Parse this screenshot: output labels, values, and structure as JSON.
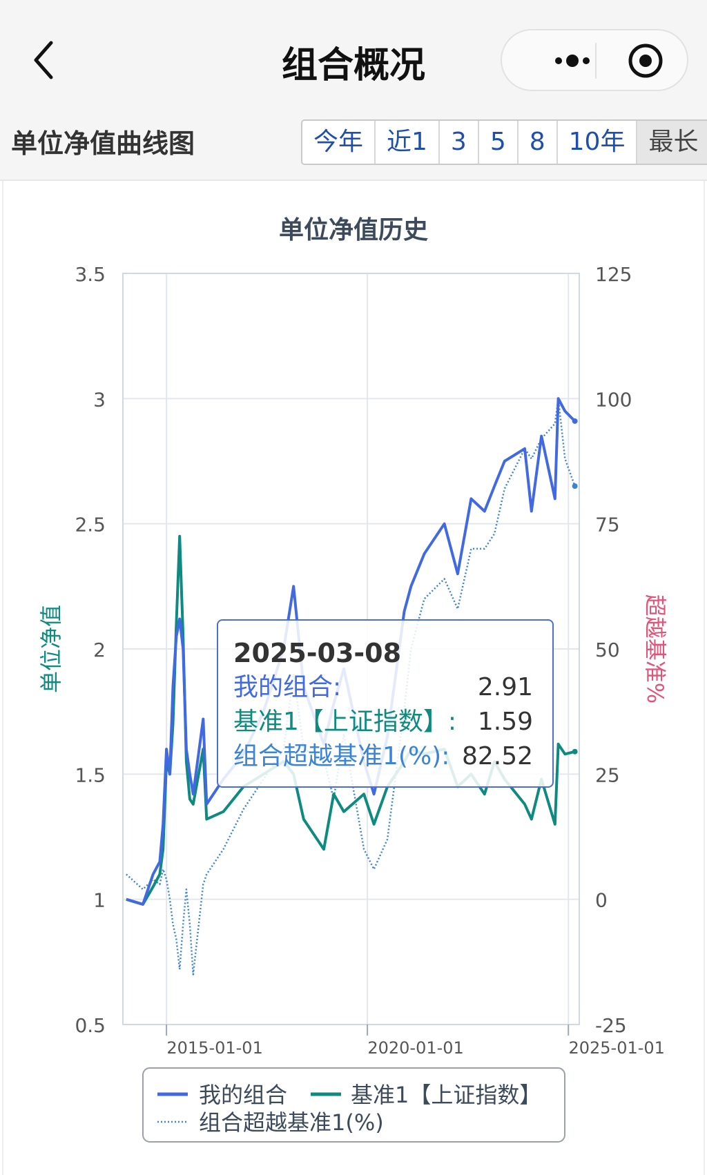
{
  "nav": {
    "title": "组合概况"
  },
  "section": {
    "title": "单位净值曲线图",
    "ranges": [
      "今年",
      "近1",
      "3",
      "5",
      "8",
      "10年",
      "最长"
    ],
    "active_range": "最长"
  },
  "chart_data": {
    "type": "line",
    "title": "单位净值历史",
    "ylabel": "单位净值",
    "y2label": "超越基准%",
    "ylim": [
      0.5,
      3.5
    ],
    "y_ticks": [
      "3.5",
      "3",
      "2.5",
      "2",
      "1.5",
      "1",
      "0.5"
    ],
    "y2lim": [
      -25,
      125
    ],
    "y2_ticks": [
      "125",
      "100",
      "75",
      "50",
      "25",
      "0",
      "-25"
    ],
    "x_ticks": [
      "2015-01-01",
      "2020-01-01",
      "2025-01-01"
    ],
    "xlim": [
      "2013-12-01",
      "2025-04-10"
    ],
    "grid": true,
    "legend_position": "bottom",
    "colors": {
      "portfolio": "#4169e1",
      "benchmark": "#0e8a80",
      "excess": "#3a83d6",
      "y2label": "#e05577"
    },
    "series": [
      {
        "name": "我的组合",
        "axis": "left",
        "x": [
          "2014-01",
          "2014-06",
          "2014-09",
          "2014-11",
          "2014-12",
          "2015-01",
          "2015-02",
          "2015-03",
          "2015-04",
          "2015-05",
          "2015-06",
          "2015-07",
          "2015-08",
          "2015-09",
          "2015-12",
          "2016-01",
          "2016-06",
          "2016-12",
          "2017-06",
          "2017-12",
          "2018-03",
          "2018-06",
          "2018-12",
          "2019-03",
          "2019-06",
          "2019-12",
          "2020-03",
          "2020-07",
          "2020-12",
          "2021-02",
          "2021-06",
          "2021-12",
          "2022-04",
          "2022-08",
          "2022-12",
          "2023-03",
          "2023-06",
          "2023-12",
          "2024-02",
          "2024-05",
          "2024-09",
          "2024-10",
          "2024-12",
          "2025-03"
        ],
        "values": [
          1.0,
          0.98,
          1.1,
          1.15,
          1.3,
          1.6,
          1.5,
          1.85,
          2.05,
          2.12,
          2.0,
          1.6,
          1.5,
          1.42,
          1.72,
          1.38,
          1.48,
          1.58,
          1.75,
          2.0,
          2.25,
          1.85,
          1.62,
          1.78,
          1.92,
          1.55,
          1.42,
          1.65,
          2.15,
          2.25,
          2.38,
          2.5,
          2.3,
          2.6,
          2.55,
          2.65,
          2.75,
          2.8,
          2.55,
          2.85,
          2.6,
          3.0,
          2.95,
          2.91
        ]
      },
      {
        "name": "基准1【上证指数】",
        "axis": "left",
        "x": [
          "2014-01",
          "2014-06",
          "2014-09",
          "2014-11",
          "2014-12",
          "2015-01",
          "2015-02",
          "2015-03",
          "2015-04",
          "2015-05",
          "2015-06",
          "2015-07",
          "2015-08",
          "2015-09",
          "2015-12",
          "2016-01",
          "2016-06",
          "2016-12",
          "2017-06",
          "2017-12",
          "2018-03",
          "2018-06",
          "2018-12",
          "2019-03",
          "2019-06",
          "2019-12",
          "2020-03",
          "2020-07",
          "2020-12",
          "2021-02",
          "2021-06",
          "2021-12",
          "2022-04",
          "2022-08",
          "2022-12",
          "2023-03",
          "2023-06",
          "2023-12",
          "2024-02",
          "2024-05",
          "2024-09",
          "2024-10",
          "2024-12",
          "2025-03"
        ],
        "values": [
          1.0,
          0.98,
          1.05,
          1.1,
          1.2,
          1.55,
          1.5,
          1.7,
          2.1,
          2.45,
          2.05,
          1.55,
          1.4,
          1.38,
          1.6,
          1.32,
          1.35,
          1.45,
          1.5,
          1.55,
          1.5,
          1.32,
          1.2,
          1.42,
          1.35,
          1.42,
          1.3,
          1.45,
          1.55,
          1.6,
          1.58,
          1.6,
          1.45,
          1.5,
          1.42,
          1.55,
          1.48,
          1.38,
          1.32,
          1.48,
          1.3,
          1.62,
          1.58,
          1.59
        ]
      },
      {
        "name": "组合超越基准1(%)",
        "axis": "right",
        "x": [
          "2014-01",
          "2014-06",
          "2014-09",
          "2014-11",
          "2014-12",
          "2015-01",
          "2015-02",
          "2015-03",
          "2015-04",
          "2015-05",
          "2015-06",
          "2015-07",
          "2015-08",
          "2015-09",
          "2015-12",
          "2016-01",
          "2016-06",
          "2016-12",
          "2017-06",
          "2017-12",
          "2018-03",
          "2018-06",
          "2018-12",
          "2019-03",
          "2019-06",
          "2019-12",
          "2020-03",
          "2020-07",
          "2020-12",
          "2021-02",
          "2021-06",
          "2021-12",
          "2022-04",
          "2022-08",
          "2022-12",
          "2023-03",
          "2023-06",
          "2023-12",
          "2024-02",
          "2024-05",
          "2024-09",
          "2024-10",
          "2024-12",
          "2025-03"
        ],
        "values": [
          5,
          2,
          4,
          3,
          6,
          4,
          0,
          -5,
          -8,
          -14,
          -5,
          2,
          -5,
          -15,
          3,
          5,
          10,
          18,
          24,
          30,
          45,
          30,
          28,
          20,
          33,
          10,
          6,
          12,
          38,
          50,
          60,
          64,
          58,
          70,
          70,
          73,
          82,
          90,
          88,
          92,
          95,
          100,
          88,
          82.52
        ]
      }
    ],
    "tooltip": {
      "date": "2025-03-08",
      "rows": [
        {
          "label": "我的组合:",
          "value": "2.91"
        },
        {
          "label": "基准1【上证指数】:",
          "value": "1.59"
        },
        {
          "label": "组合超越基准1(%):",
          "value": "82.52"
        }
      ]
    }
  }
}
